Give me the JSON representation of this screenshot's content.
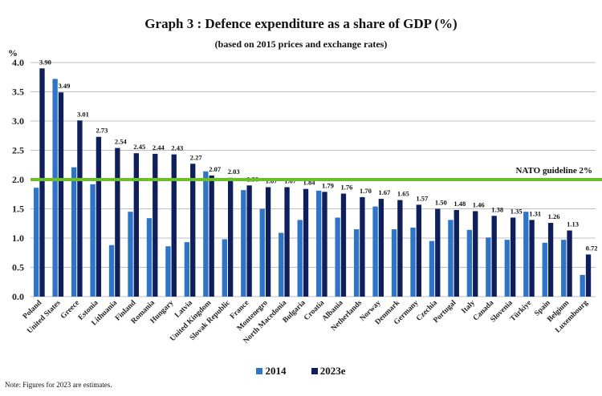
{
  "chart_data": {
    "type": "bar",
    "title": "Graph 3 : Defence expenditure as a share of GDP (%)",
    "subtitle": "(based on 2015 prices and exchange rates)",
    "xlabel": "",
    "ylabel": "%",
    "ylim": [
      0,
      4.0
    ],
    "yticks": [
      "0.0",
      "0.5",
      "1.0",
      "1.5",
      "2.0",
      "2.5",
      "3.0",
      "3.5",
      "4.0"
    ],
    "grid": true,
    "legend_position": "bottom-center",
    "categories": [
      "Poland",
      "United States",
      "Greece",
      "Estonia",
      "Lithuania",
      "Finland",
      "Romania",
      "Hungary",
      "Latvia",
      "United Kingdom",
      "Slovak Republic",
      "France",
      "Montenegro",
      "North Macedonia",
      "Bulgaria",
      "Croatia",
      "Albania",
      "Netherlands",
      "Norway",
      "Denmark",
      "Germany",
      "Czechia",
      "Portugal",
      "Italy",
      "Canada",
      "Slovenia",
      "Türkiye",
      "Spain",
      "Belgium",
      "Luxembourg"
    ],
    "series": [
      {
        "name": "2014",
        "color": "#2e75c8",
        "labeled": false,
        "values": [
          1.86,
          3.72,
          2.21,
          1.92,
          0.88,
          1.45,
          1.34,
          0.86,
          0.93,
          2.14,
          0.98,
          1.82,
          1.5,
          1.09,
          1.31,
          1.81,
          1.35,
          1.15,
          1.54,
          1.15,
          1.18,
          0.95,
          1.31,
          1.14,
          1.01,
          0.97,
          1.45,
          0.92,
          0.97,
          0.37
        ]
      },
      {
        "name": "2023e",
        "color": "#0f1f5c",
        "labeled": true,
        "values": [
          3.9,
          3.49,
          3.01,
          2.73,
          2.54,
          2.45,
          2.44,
          2.43,
          2.27,
          2.07,
          2.03,
          1.9,
          1.87,
          1.87,
          1.84,
          1.79,
          1.76,
          1.7,
          1.67,
          1.65,
          1.57,
          1.5,
          1.48,
          1.46,
          1.38,
          1.35,
          1.31,
          1.26,
          1.13,
          0.72
        ],
        "data_labels": [
          "3.90",
          "3.49",
          "3.01",
          "2.73",
          "2.54",
          "2.45",
          "2.44",
          "2.43",
          "2.27",
          "2.07",
          "2.03",
          "1.90",
          "1.87",
          "1.87",
          "1.84",
          "1.79",
          "1.76",
          "1.70",
          "1.67",
          "1.65",
          "1.57",
          "1.50",
          "1.48",
          "1.46",
          "1.38",
          "1.35",
          "1.31",
          "1.26",
          "1.13",
          "0.72"
        ]
      }
    ],
    "reference_line": {
      "value": 2.0,
      "label": "NATO guideline 2%",
      "color": "#6cbf2a"
    },
    "legend": [
      "2014",
      "2023e"
    ],
    "note": "Note: Figures for 2023 are estimates."
  }
}
